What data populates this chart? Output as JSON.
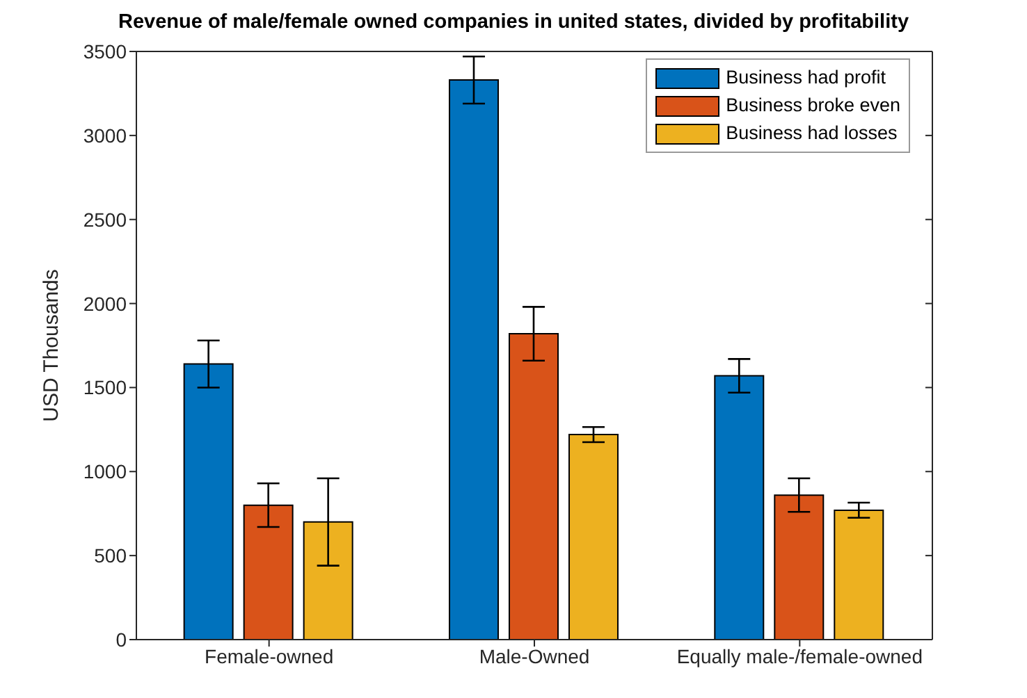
{
  "chart_data": {
    "type": "bar",
    "title": "Revenue of male/female owned companies in united states, divided by profitability",
    "ylabel": "USD Thousands",
    "categories": [
      "Female-owned",
      "Male-Owned",
      "Equally male-/female-owned"
    ],
    "series": [
      {
        "name": "Business had profit",
        "color": "#0072bd",
        "values": [
          1640,
          3330,
          1570
        ],
        "errors": [
          140,
          140,
          100
        ]
      },
      {
        "name": "Business broke even",
        "color": "#d95319",
        "values": [
          800,
          1820,
          860
        ],
        "errors": [
          130,
          160,
          100
        ]
      },
      {
        "name": "Business had losses",
        "color": "#edb120",
        "values": [
          700,
          1220,
          770
        ],
        "errors": [
          260,
          45,
          45
        ]
      }
    ],
    "ylim": [
      0,
      3500
    ],
    "yticks": [
      0,
      500,
      1000,
      1500,
      2000,
      2500,
      3000,
      3500
    ],
    "grid": false,
    "legend": "top right"
  }
}
